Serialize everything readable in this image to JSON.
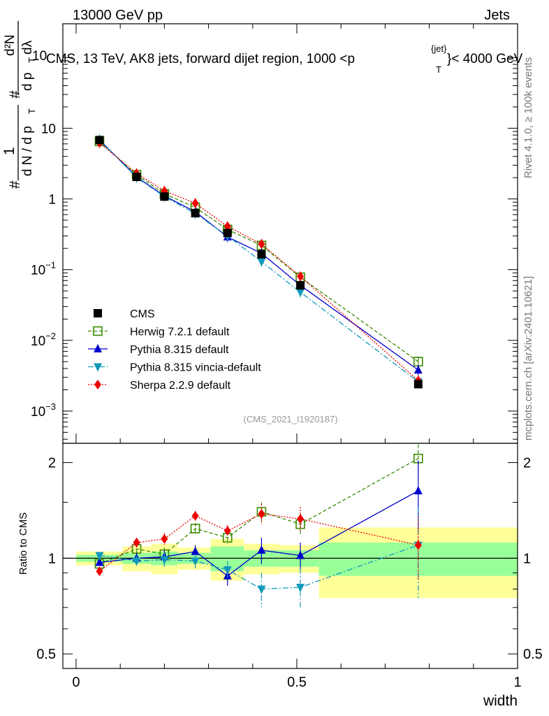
{
  "header": {
    "left": "13000 GeV pp",
    "right": "Jets"
  },
  "side_labels": {
    "rivet": "Rivet 4.1.0, ≥ 100k events",
    "mcplots": "mcplots.cern.ch [arXiv:2401.10621]"
  },
  "chart_data": {
    "type": "scatter",
    "title": "CMS, 13 TeV, AK8 jets, forward dijet region, 1000 <p_T^{jet}< 4000 GeV",
    "title_text": "CMS, 13 TeV, AK8 jets, forward dijet region, 1000 <p",
    "title_sub": "T",
    "title_sup": "{jet}",
    "title_tail": "}< 4000 GeV",
    "title_prefix": "10",
    "analysis_tag": "(CMS_2021_I1920187)",
    "ylabel_top": {
      "fraction_one": "1",
      "fraction_dn": "d N / d p",
      "fraction_sub": "T",
      "hash_main": "#",
      "second_num": "d²N",
      "second_den": "d p",
      "second_den_sub": "T",
      "second_den_tail": " dλ",
      "hash_second": "#"
    },
    "ylabel_ratio": "Ratio to CMS",
    "xlabel": "width",
    "xlim": [
      -0.03,
      1.0
    ],
    "ylim_main": [
      0.00035,
      300
    ],
    "ylog_main": true,
    "ylim_ratio": [
      0.45,
      2.3
    ],
    "ylog_ratio": true,
    "x_ticks": [
      "0",
      "0.5",
      "1"
    ],
    "x_tick_values": [
      0,
      0.5,
      1
    ],
    "y_ticks_main": [
      {
        "value": 0.001,
        "base": "10",
        "exp": "−3"
      },
      {
        "value": 0.01,
        "base": "10",
        "exp": "−2"
      },
      {
        "value": 0.1,
        "base": "10",
        "exp": "−1"
      },
      {
        "value": 1,
        "base": "1",
        "exp": ""
      },
      {
        "value": 10,
        "base": "10",
        "exp": ""
      },
      {
        "value": 100,
        "base": "10",
        "exp": "2"
      }
    ],
    "y_ticks_ratio": [
      {
        "value": 0.5,
        "label": "0.5"
      },
      {
        "value": 1,
        "label": "1"
      },
      {
        "value": 2,
        "label": "2"
      }
    ],
    "x": [
      0.053,
      0.137,
      0.2,
      0.27,
      0.343,
      0.42,
      0.508,
      0.775
    ],
    "bin_edges": [
      0,
      0.105,
      0.17,
      0.23,
      0.305,
      0.38,
      0.46,
      0.55,
      1.0
    ],
    "band_green": [
      0.025,
      0.04,
      0.05,
      0.04,
      0.09,
      0.06,
      0.06,
      0.12
    ],
    "band_yellow": [
      0.05,
      0.09,
      0.11,
      0.08,
      0.15,
      0.11,
      0.1,
      0.25
    ],
    "series": [
      {
        "name": "CMS",
        "key": "cms",
        "color": "#000000",
        "marker": "square",
        "values": [
          6.8,
          2.05,
          1.08,
          0.63,
          0.33,
          0.165,
          0.06,
          0.0024
        ],
        "ratio": [
          1,
          1,
          1,
          1,
          1,
          1,
          1,
          1
        ]
      },
      {
        "name": "Herwig 7.2.1 default",
        "key": "herwig",
        "color": "#3a8a00",
        "marker": "open-square",
        "dash": "5,3",
        "values": [
          6.5,
          2.2,
          1.18,
          0.76,
          0.37,
          0.22,
          0.078,
          0.005
        ],
        "ratio": [
          0.96,
          1.07,
          1.03,
          1.24,
          1.16,
          1.4,
          1.28,
          2.06
        ],
        "ratio_err": [
          0.02,
          0.04,
          0.05,
          0.05,
          0.05,
          0.1,
          0.1,
          0.22
        ]
      },
      {
        "name": "Pythia 8.315 default",
        "key": "pythia",
        "color": "#0000cc",
        "marker": "triangle-up",
        "dash": "",
        "values": [
          6.8,
          2.05,
          1.1,
          0.66,
          0.29,
          0.17,
          0.06,
          0.0038
        ],
        "ratio": [
          0.97,
          1.0,
          1.01,
          1.05,
          0.88,
          1.06,
          1.02,
          1.63
        ],
        "ratio_err": [
          0.02,
          0.04,
          0.05,
          0.05,
          0.06,
          0.1,
          0.1,
          0.4
        ]
      },
      {
        "name": "Pythia 8.315 vincia-default",
        "key": "vincia",
        "color": "#1199bb",
        "marker": "triangle-down",
        "dash": "8,3,2,3",
        "values": [
          6.9,
          2.0,
          1.08,
          0.62,
          0.3,
          0.13,
          0.048,
          0.0026
        ],
        "ratio": [
          1.02,
          0.98,
          0.99,
          0.98,
          0.92,
          0.8,
          0.81,
          1.1
        ],
        "ratio_err": [
          0.02,
          0.04,
          0.05,
          0.05,
          0.06,
          0.1,
          0.12,
          0.35
        ]
      },
      {
        "name": "Sherpa 2.2.9 default",
        "key": "sherpa",
        "color": "#ee0000",
        "marker": "diamond",
        "dash": "2,2",
        "values": [
          6.2,
          2.3,
          1.3,
          0.87,
          0.41,
          0.23,
          0.08,
          0.0027
        ],
        "ratio": [
          0.91,
          1.12,
          1.15,
          1.36,
          1.22,
          1.38,
          1.33,
          1.1
        ],
        "ratio_err": [
          0.02,
          0.04,
          0.05,
          0.05,
          0.05,
          0.1,
          0.12,
          0.25
        ]
      }
    ]
  }
}
